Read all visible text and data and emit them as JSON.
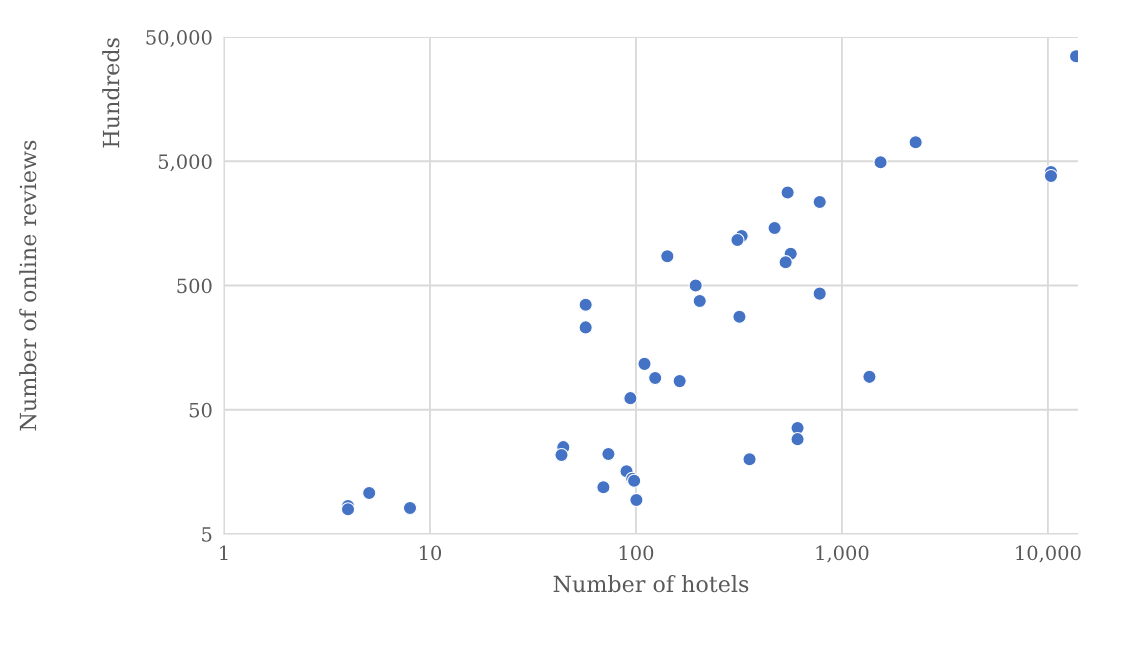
{
  "chart_data": {
    "type": "scatter",
    "xlabel": "Number of hotels",
    "ylabel": "Number of online reviews",
    "annotations": [
      "Hundreds"
    ],
    "x": [
      13700,
      2280,
      1540,
      10350,
      10350,
      545,
      780,
      471,
      326,
      311,
      564,
      533,
      142,
      195,
      204,
      780,
      57,
      57,
      318,
      110,
      124,
      163,
      1360,
      94,
      44.4,
      43.5,
      73.5,
      609,
      609,
      356,
      90,
      96,
      98,
      69.5,
      100.5,
      5.07,
      4.0,
      4.0,
      8.0
    ],
    "series": [
      {
        "color": "#4472c4",
        "values": [
          35000,
          7100,
          4900,
          4100,
          3800,
          2800,
          2350,
          1450,
          1250,
          1160,
          900,
          770,
          860,
          500,
          375,
          430,
          350,
          230,
          280,
          117,
          90,
          85,
          92,
          62,
          25,
          21.6,
          22,
          35.6,
          29,
          20,
          16,
          13.9,
          13.4,
          11.9,
          9.4,
          10.7,
          8.4,
          7.9,
          8.1
        ]
      }
    ],
    "log": "xy",
    "xlim": [
      1,
      14000
    ],
    "ylim": [
      5,
      50000
    ],
    "xticks": [
      1,
      10,
      100,
      {
        "value": 1000,
        "label": "1,000"
      },
      {
        "value": 10000,
        "label": "10,000"
      }
    ],
    "yticks": [
      5,
      50,
      500,
      {
        "value": 5000,
        "label": "5,000"
      },
      {
        "value": 50000,
        "label": "50,000"
      }
    ],
    "grid": true,
    "marker": "circle",
    "legend": false
  }
}
